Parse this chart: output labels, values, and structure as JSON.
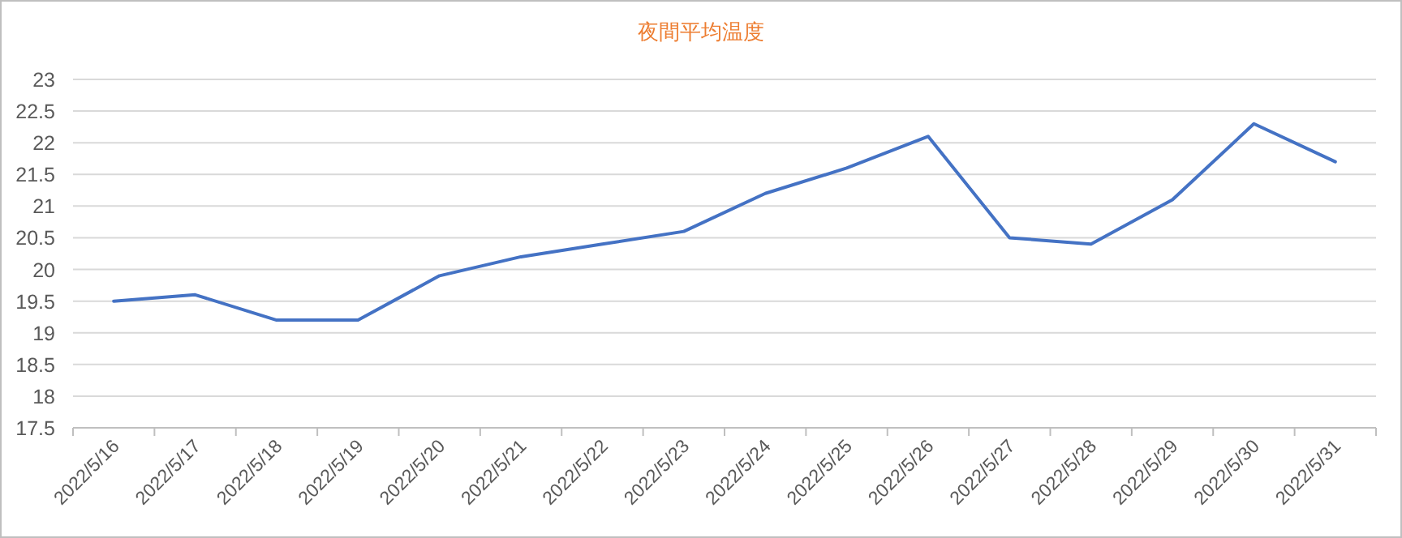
{
  "chart_data": {
    "type": "line",
    "title": "夜間平均温度",
    "categories": [
      "2022/5/16",
      "2022/5/17",
      "2022/5/18",
      "2022/5/19",
      "2022/5/20",
      "2022/5/21",
      "2022/5/22",
      "2022/5/23",
      "2022/5/24",
      "2022/5/25",
      "2022/5/26",
      "2022/5/27",
      "2022/5/28",
      "2022/5/29",
      "2022/5/30",
      "2022/5/31"
    ],
    "series": [
      {
        "color": "#4472c4",
        "values": [
          19.5,
          19.6,
          19.2,
          19.2,
          19.9,
          20.2,
          20.4,
          20.6,
          21.2,
          21.6,
          22.1,
          20.5,
          20.4,
          21.1,
          22.3,
          21.7
        ]
      }
    ],
    "ylim": [
      17.5,
      23
    ],
    "yticks": [
      17.5,
      18,
      18.5,
      19,
      19.5,
      20,
      20.5,
      21,
      21.5,
      22,
      22.5,
      23
    ],
    "grid": "y",
    "marker": "none",
    "line_style": "solid"
  }
}
